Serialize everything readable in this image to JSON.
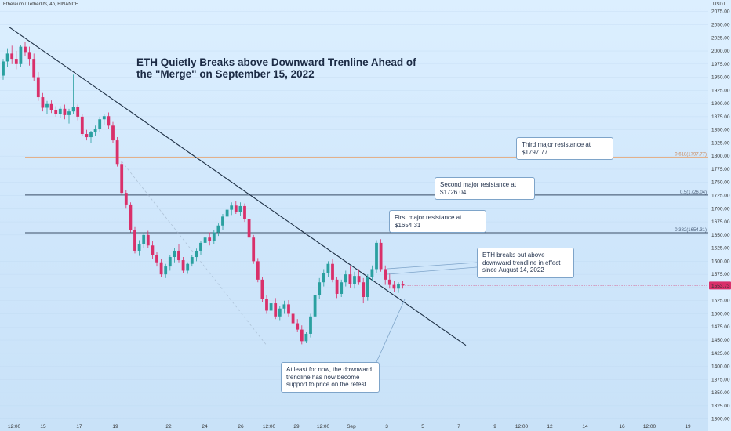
{
  "header": {
    "symbol": "Ethereum / TetherUS, 4h, BINANCE",
    "currency": "USDT"
  },
  "title": "ETH Quietly Breaks above Downward Trenline Ahead of the \"Merge\" on September 15, 2022",
  "callouts": {
    "third": "Third major resistance at $1797.77",
    "second": "Second major resistance at $1726.04",
    "first": "First major resistance at $1654.31",
    "breakout": "ETH breaks out above downward trendline in effect since August 14, 2022",
    "support": "At least for now, the downward trendline has now become support to price on the retest"
  },
  "price_tag": "1553.73",
  "colors": {
    "up": "#2aa0a0",
    "down": "#d9306a",
    "trendline": "#1d2f44",
    "resistance": "#3b4d66",
    "fib_0618": "#e3b08a"
  },
  "chart_data": {
    "type": "candlestick",
    "y_range": [
      1295,
      2085
    ],
    "y_ticks": [
      1300,
      1325,
      1350,
      1375,
      1400,
      1425,
      1450,
      1475,
      1500,
      1525,
      1550,
      1575,
      1600,
      1625,
      1650,
      1675,
      1700,
      1725,
      1750,
      1775,
      1800,
      1825,
      1850,
      1875,
      1900,
      1925,
      1950,
      1975,
      2000,
      2025,
      2050,
      2075
    ],
    "x_labels": [
      "12:00",
      "15",
      "17",
      "19",
      "22",
      "24",
      "26",
      "12:00",
      "29",
      "12:00",
      "Sep",
      "3",
      "5",
      "7",
      "9",
      "12:00",
      "12",
      "14",
      "16",
      "12:00",
      "19"
    ],
    "levels": [
      {
        "label": "0.618(1797.77)",
        "value": 1797.77
      },
      {
        "label": "0.5(1726.04)",
        "value": 1726.04
      },
      {
        "label": "0.382(1654.31)",
        "value": 1654.31
      }
    ],
    "last_price": 1553.73,
    "ohlc": [
      [
        1953,
        1985,
        1945,
        1980
      ],
      [
        1980,
        2005,
        1970,
        1995
      ],
      [
        1995,
        2010,
        1975,
        1985
      ],
      [
        1985,
        2000,
        1965,
        1975
      ],
      [
        1975,
        2012,
        1970,
        2008
      ],
      [
        2008,
        2018,
        1990,
        1998
      ],
      [
        1998,
        2008,
        1972,
        1985
      ],
      [
        1985,
        1995,
        1942,
        1950
      ],
      [
        1950,
        1960,
        1905,
        1912
      ],
      [
        1912,
        1920,
        1885,
        1892
      ],
      [
        1892,
        1905,
        1880,
        1899
      ],
      [
        1899,
        1906,
        1882,
        1888
      ],
      [
        1888,
        1895,
        1875,
        1880
      ],
      [
        1880,
        1895,
        1872,
        1890
      ],
      [
        1890,
        1898,
        1870,
        1878
      ],
      [
        1878,
        1890,
        1862,
        1885
      ],
      [
        1885,
        1955,
        1880,
        1893
      ],
      [
        1893,
        1898,
        1868,
        1875
      ],
      [
        1875,
        1880,
        1838,
        1842
      ],
      [
        1842,
        1850,
        1830,
        1836
      ],
      [
        1836,
        1848,
        1825,
        1845
      ],
      [
        1845,
        1858,
        1838,
        1852
      ],
      [
        1852,
        1875,
        1846,
        1870
      ],
      [
        1870,
        1880,
        1860,
        1876
      ],
      [
        1876,
        1883,
        1852,
        1858
      ],
      [
        1858,
        1865,
        1825,
        1830
      ],
      [
        1830,
        1836,
        1780,
        1785
      ],
      [
        1785,
        1790,
        1725,
        1730
      ],
      [
        1730,
        1735,
        1700,
        1708
      ],
      [
        1708,
        1712,
        1655,
        1660
      ],
      [
        1660,
        1665,
        1615,
        1620
      ],
      [
        1620,
        1640,
        1610,
        1633
      ],
      [
        1633,
        1655,
        1625,
        1650
      ],
      [
        1650,
        1658,
        1625,
        1630
      ],
      [
        1630,
        1638,
        1605,
        1612
      ],
      [
        1612,
        1618,
        1590,
        1598
      ],
      [
        1598,
        1604,
        1570,
        1575
      ],
      [
        1575,
        1595,
        1568,
        1590
      ],
      [
        1590,
        1612,
        1582,
        1608
      ],
      [
        1608,
        1625,
        1598,
        1620
      ],
      [
        1620,
        1632,
        1598,
        1602
      ],
      [
        1602,
        1608,
        1578,
        1582
      ],
      [
        1582,
        1598,
        1576,
        1595
      ],
      [
        1595,
        1612,
        1590,
        1608
      ],
      [
        1608,
        1624,
        1600,
        1620
      ],
      [
        1620,
        1638,
        1612,
        1635
      ],
      [
        1635,
        1650,
        1625,
        1645
      ],
      [
        1645,
        1655,
        1630,
        1638
      ],
      [
        1638,
        1660,
        1632,
        1655
      ],
      [
        1655,
        1672,
        1648,
        1668
      ],
      [
        1668,
        1690,
        1660,
        1685
      ],
      [
        1685,
        1702,
        1676,
        1698
      ],
      [
        1698,
        1712,
        1688,
        1706
      ],
      [
        1706,
        1714,
        1690,
        1694
      ],
      [
        1694,
        1712,
        1686,
        1705
      ],
      [
        1705,
        1710,
        1675,
        1680
      ],
      [
        1680,
        1685,
        1640,
        1645
      ],
      [
        1645,
        1650,
        1595,
        1600
      ],
      [
        1600,
        1606,
        1560,
        1565
      ],
      [
        1565,
        1570,
        1522,
        1528
      ],
      [
        1528,
        1535,
        1500,
        1506
      ],
      [
        1506,
        1525,
        1498,
        1520
      ],
      [
        1520,
        1530,
        1490,
        1495
      ],
      [
        1495,
        1515,
        1488,
        1510
      ],
      [
        1510,
        1525,
        1500,
        1518
      ],
      [
        1518,
        1526,
        1495,
        1500
      ],
      [
        1500,
        1508,
        1476,
        1482
      ],
      [
        1482,
        1490,
        1465,
        1470
      ],
      [
        1470,
        1478,
        1442,
        1448
      ],
      [
        1448,
        1465,
        1444,
        1462
      ],
      [
        1462,
        1500,
        1455,
        1495
      ],
      [
        1495,
        1540,
        1488,
        1535
      ],
      [
        1535,
        1568,
        1528,
        1560
      ],
      [
        1560,
        1585,
        1552,
        1578
      ],
      [
        1578,
        1600,
        1570,
        1595
      ],
      [
        1595,
        1605,
        1560,
        1565
      ],
      [
        1565,
        1570,
        1530,
        1538
      ],
      [
        1538,
        1565,
        1532,
        1560
      ],
      [
        1560,
        1582,
        1552,
        1575
      ],
      [
        1575,
        1590,
        1550,
        1556
      ],
      [
        1556,
        1580,
        1548,
        1572
      ],
      [
        1572,
        1585,
        1555,
        1560
      ],
      [
        1560,
        1568,
        1520,
        1532
      ],
      [
        1532,
        1575,
        1525,
        1570
      ],
      [
        1570,
        1592,
        1562,
        1585
      ],
      [
        1585,
        1640,
        1578,
        1635
      ],
      [
        1635,
        1642,
        1580,
        1585
      ],
      [
        1585,
        1592,
        1555,
        1565
      ],
      [
        1565,
        1578,
        1548,
        1555
      ],
      [
        1555,
        1562,
        1542,
        1548
      ],
      [
        1548,
        1560,
        1540,
        1556
      ],
      [
        1556,
        1562,
        1548,
        1554
      ]
    ],
    "trendline": {
      "from": [
        0,
        2045
      ],
      "to": [
        150,
        1440
      ]
    }
  }
}
